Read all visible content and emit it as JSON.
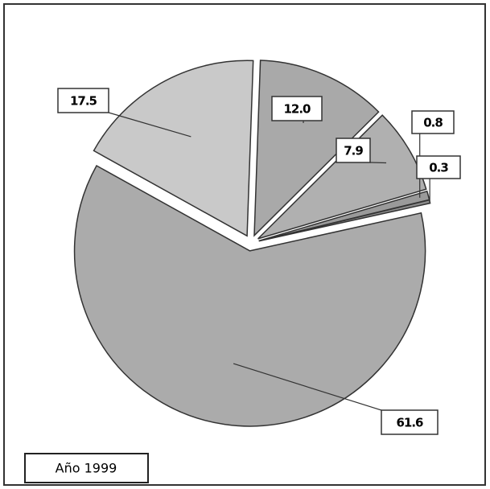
{
  "chart_data": {
    "type": "pie",
    "categories": [
      null,
      null,
      null,
      null,
      null,
      null
    ],
    "values": [
      12.0,
      7.9,
      0.8,
      0.3,
      61.6,
      17.5
    ],
    "value_labels": [
      "12.0",
      "7.9",
      "0.8",
      "0.3",
      "61.6",
      "17.5"
    ],
    "colors": [
      "#a9a9a9",
      "#b0b0b0",
      "#9a9a9a",
      "#8c8c8c",
      "#ababab",
      "#c9c9c9"
    ],
    "annotation": "Año 1999"
  }
}
